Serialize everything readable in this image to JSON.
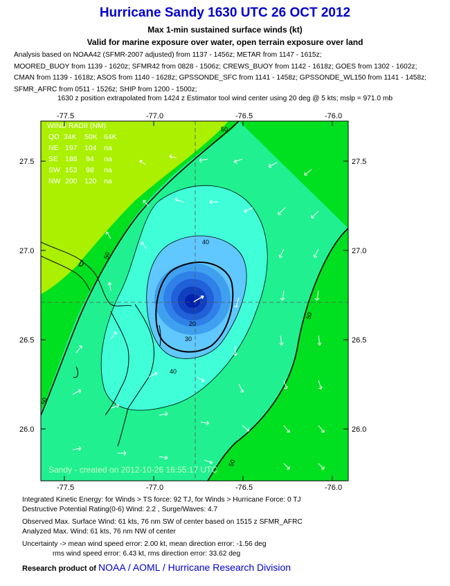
{
  "header": {
    "title": "Hurricane Sandy 1630 UTC 26 OCT 2012",
    "subtitle1": "Max 1-min sustained surface winds (kt)",
    "subtitle2": "Valid for marine exposure over water, open terrain exposure over land"
  },
  "analysis_lines": [
    "Analysis based on NOAA42 (SFMR-2007 adjusted) from 1137 - 1456z; METAR from 1147 - 1615z;",
    "MOORED_BUOY from 1139 - 1620z; SFMR42 from 0828 - 1506z; CREWS_BUOY from 1142 - 1618z; GOES from 1302 - 1602z;",
    "CMAN from 1139 - 1618z; ASOS from 1140 - 1628z; GPSSONDE_SFC from 1141 - 1458z; GPSSONDE_WL150 from 1141 - 1458z;",
    "SFMR_AFRC from 0511 - 1526z; SHIP from 1200 - 1500z;"
  ],
  "extrapolation_note": "1630 z position extrapolated from 1424 z Estimator tool wind center using 20 deg @ 5 kts; mslp = 971.0 mb",
  "map": {
    "lon_ticks": [
      "-77.5",
      "-77.0",
      "-76.5",
      "-76.0"
    ],
    "lat_ticks": [
      "27.5",
      "27.0",
      "26.5",
      "26.0"
    ],
    "contour_labels": [
      "50",
      "50",
      "50",
      "50",
      "40",
      "40",
      "30",
      "20",
      "50"
    ],
    "wind_radii": {
      "title": "WIND RADII (NM)",
      "header": [
        "QD",
        "34K",
        "50K",
        "64K"
      ],
      "rows": [
        [
          "NE",
          "197",
          "104",
          "na"
        ],
        [
          "SE",
          "188",
          "94",
          "na"
        ],
        [
          "SW",
          "153",
          "98",
          "na"
        ],
        [
          "NW",
          "200",
          "120",
          "na"
        ]
      ]
    },
    "watermark": "Sandy - created on 2012-10-26 16:55:17 UTC",
    "colors": {
      "yellow_green": "#aaf000",
      "green": "#00e020",
      "light_green": "#20f090",
      "cyan": "#40ffd8",
      "blue_light": "#60c8ff",
      "blue_dark": "#0020b0"
    }
  },
  "footer": {
    "line1": "Integrated Kinetic Energy: for Winds > TS force: 92 TJ, for Winds > Hurricane Force: 0 TJ",
    "line2": "Destructive Potential Rating(0-6)   Wind: 2.2 , Surge/Waves: 4.7",
    "line3": "Observed Max. Surface Wind: 61 kts, 76 nm SW of center based on 1515 z SFMR_AFRC",
    "line4": "Analyzed Max. Wind: 61 kts, 76 nm  NW of center",
    "line5": "Uncertainty -> mean wind speed error: 2.00 kt, mean direction error:  -1.56 deg",
    "line6": "rms wind speed error: 6.43 kt, rms direction error: 33.62 deg",
    "research_prefix": "Research product of",
    "research_org": "NOAA / AOML / Hurricane Research Division"
  }
}
